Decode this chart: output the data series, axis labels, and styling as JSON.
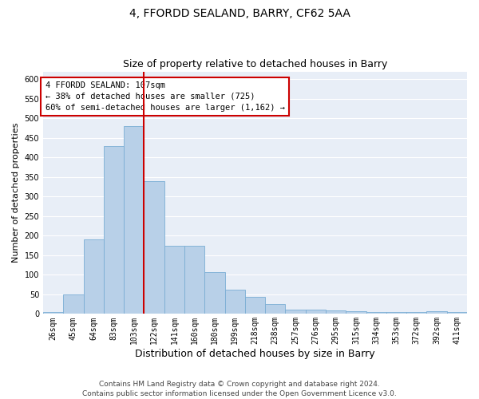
{
  "title": "4, FFORDD SEALAND, BARRY, CF62 5AA",
  "subtitle": "Size of property relative to detached houses in Barry",
  "xlabel": "Distribution of detached houses by size in Barry",
  "ylabel": "Number of detached properties",
  "categories": [
    "26sqm",
    "45sqm",
    "64sqm",
    "83sqm",
    "103sqm",
    "122sqm",
    "141sqm",
    "160sqm",
    "180sqm",
    "199sqm",
    "218sqm",
    "238sqm",
    "257sqm",
    "276sqm",
    "295sqm",
    "315sqm",
    "334sqm",
    "353sqm",
    "372sqm",
    "392sqm",
    "411sqm"
  ],
  "values": [
    5,
    50,
    190,
    430,
    480,
    340,
    175,
    175,
    107,
    62,
    44,
    25,
    12,
    12,
    8,
    7,
    5,
    4,
    4,
    6,
    4
  ],
  "bar_color": "#b8d0e8",
  "bar_edge_color": "#7aadd4",
  "vline_index": 4,
  "vline_color": "#cc0000",
  "annotation_text": "4 FFORDD SEALAND: 107sqm\n← 38% of detached houses are smaller (725)\n60% of semi-detached houses are larger (1,162) →",
  "annotation_box_color": "#cc0000",
  "plot_bg_color": "#e8eef7",
  "grid_color": "#ffffff",
  "ylim": [
    0,
    620
  ],
  "yticks": [
    0,
    50,
    100,
    150,
    200,
    250,
    300,
    350,
    400,
    450,
    500,
    550,
    600
  ],
  "footer": "Contains HM Land Registry data © Crown copyright and database right 2024.\nContains public sector information licensed under the Open Government Licence v3.0.",
  "title_fontsize": 10,
  "subtitle_fontsize": 9,
  "xlabel_fontsize": 9,
  "ylabel_fontsize": 8,
  "tick_fontsize": 7,
  "annotation_fontsize": 7.5,
  "footer_fontsize": 6.5
}
